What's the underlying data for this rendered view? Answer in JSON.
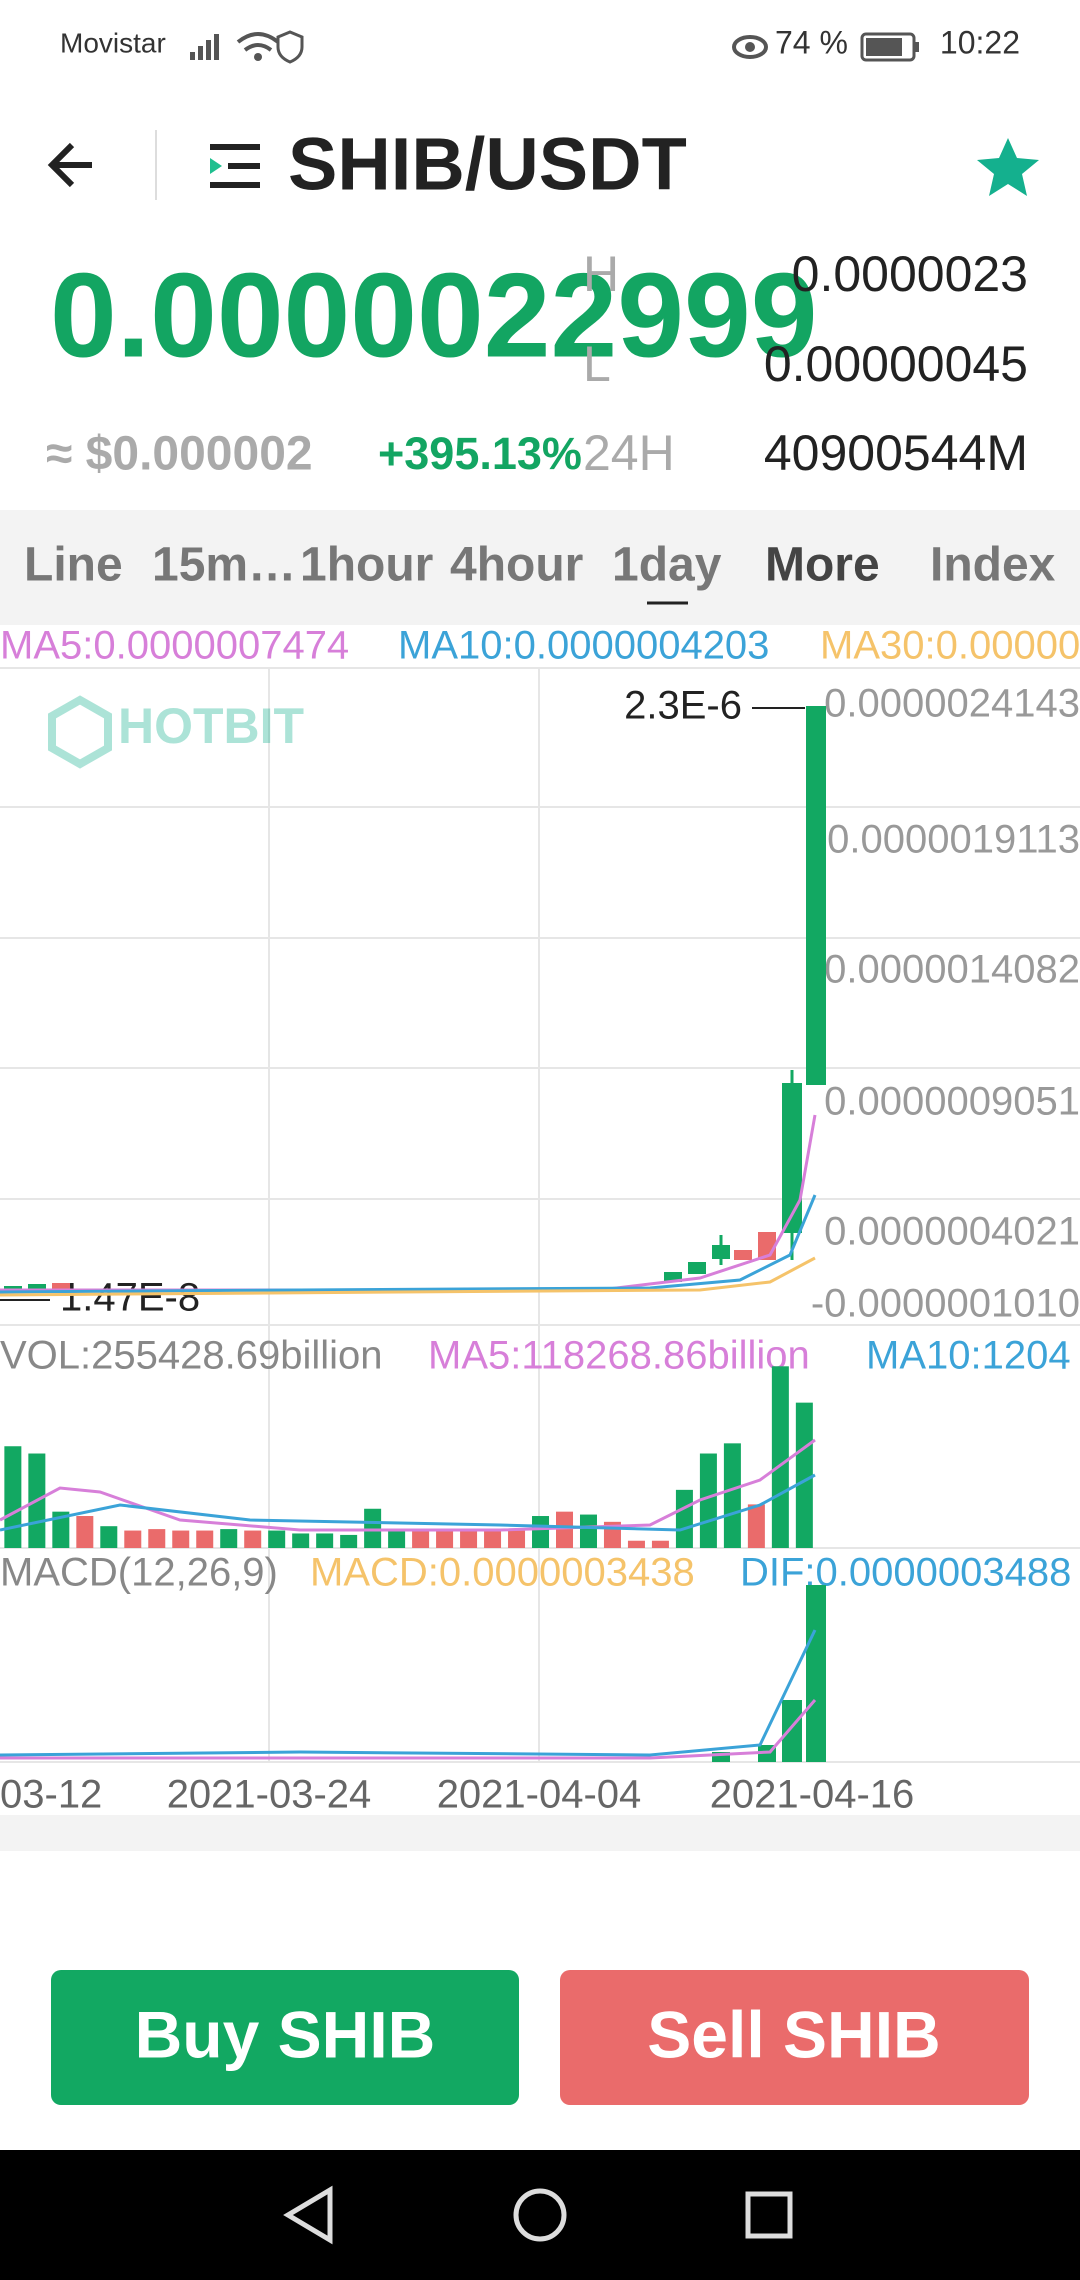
{
  "status_bar": {
    "carrier": "Movistar",
    "battery": "74 %",
    "time": "10:22"
  },
  "header": {
    "title": "SHIB/USDT"
  },
  "ticker": {
    "price": "0.0000022999",
    "high_label": "H",
    "high": "0.0000023",
    "low_label": "L",
    "low": "0.00000045",
    "usd_price": "≈ $0.000002",
    "change": "+395.13%",
    "volume_label": "24H",
    "volume": "40900544M"
  },
  "tabs": [
    "Line",
    "15m…",
    "1hour",
    "4hour",
    "1day",
    "More",
    "Index"
  ],
  "chart": {
    "ma_legend": [
      "MA5:0.0000007474",
      "MA10:0.0000004203",
      "MA30:0.00000"
    ],
    "watermark": "HOTBIT",
    "price_axis": [
      "0.0000024143",
      "0.0000019113",
      "0.0000014082",
      "0.0000009051",
      "0.0000004021",
      "-0.0000001010"
    ],
    "max_marker": "2.3E-6",
    "min_marker": "1.47E-8",
    "volume_legend": [
      "VOL:255428.69billion",
      "MA5:118268.86billion",
      "MA10:1204"
    ],
    "macd_legend": [
      "MACD(12,26,9)",
      "MACD:0.0000003438",
      "DIF:0.0000003488"
    ],
    "dates": [
      "03-12",
      "2021-03-24",
      "2021-04-04",
      "2021-04-16"
    ]
  },
  "actions": {
    "buy": "Buy SHIB",
    "sell": "Sell SHIB"
  }
}
